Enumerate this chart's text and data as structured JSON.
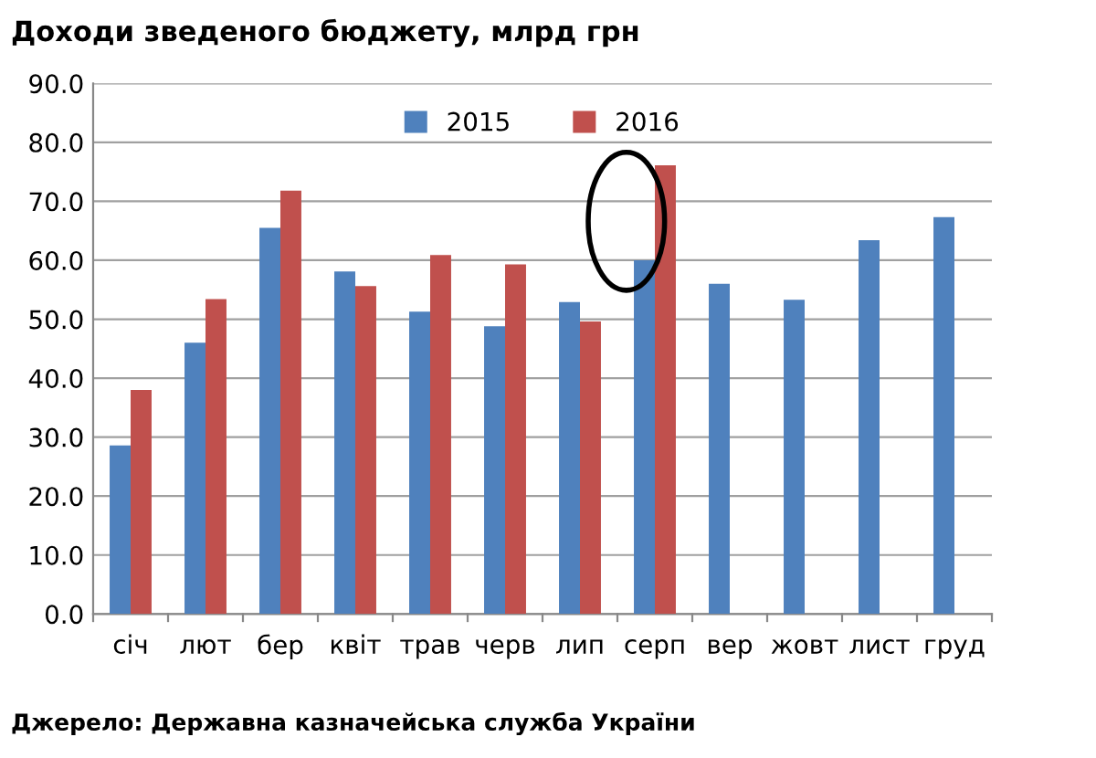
{
  "chart_data": {
    "type": "bar",
    "title": "Доходи зведеного бюджету, млрд грн",
    "categories": [
      "січ",
      "лют",
      "бер",
      "квіт",
      "трав",
      "черв",
      "лип",
      "серп",
      "вер",
      "жовт",
      "лист",
      "груд"
    ],
    "series": [
      {
        "name": "2015",
        "color": "#4f81bd",
        "values": [
          28.6,
          46.0,
          65.5,
          58.1,
          51.3,
          48.8,
          52.9,
          60.0,
          56.0,
          53.3,
          63.4,
          67.3
        ]
      },
      {
        "name": "2016",
        "color": "#c0504d",
        "values": [
          38.0,
          53.4,
          71.8,
          55.6,
          60.9,
          59.3,
          49.6,
          76.1,
          null,
          null,
          null,
          null
        ]
      }
    ],
    "ylim": [
      0,
      90
    ],
    "yticks": [
      {
        "value": 0,
        "label": "0.0"
      },
      {
        "value": 10,
        "label": "10.0"
      },
      {
        "value": 20,
        "label": "20.0"
      },
      {
        "value": 30,
        "label": "30.0"
      },
      {
        "value": 40,
        "label": "40.0"
      },
      {
        "value": 50,
        "label": "50.0"
      },
      {
        "value": 60,
        "label": "60.0"
      },
      {
        "value": 70,
        "label": "70.0"
      },
      {
        "value": 80,
        "label": "80.0"
      },
      {
        "value": 90,
        "label": "90.0"
      }
    ],
    "grid": "y",
    "legend": "top",
    "annotations": [
      "Джерело: Державна казначейська служба України"
    ]
  }
}
